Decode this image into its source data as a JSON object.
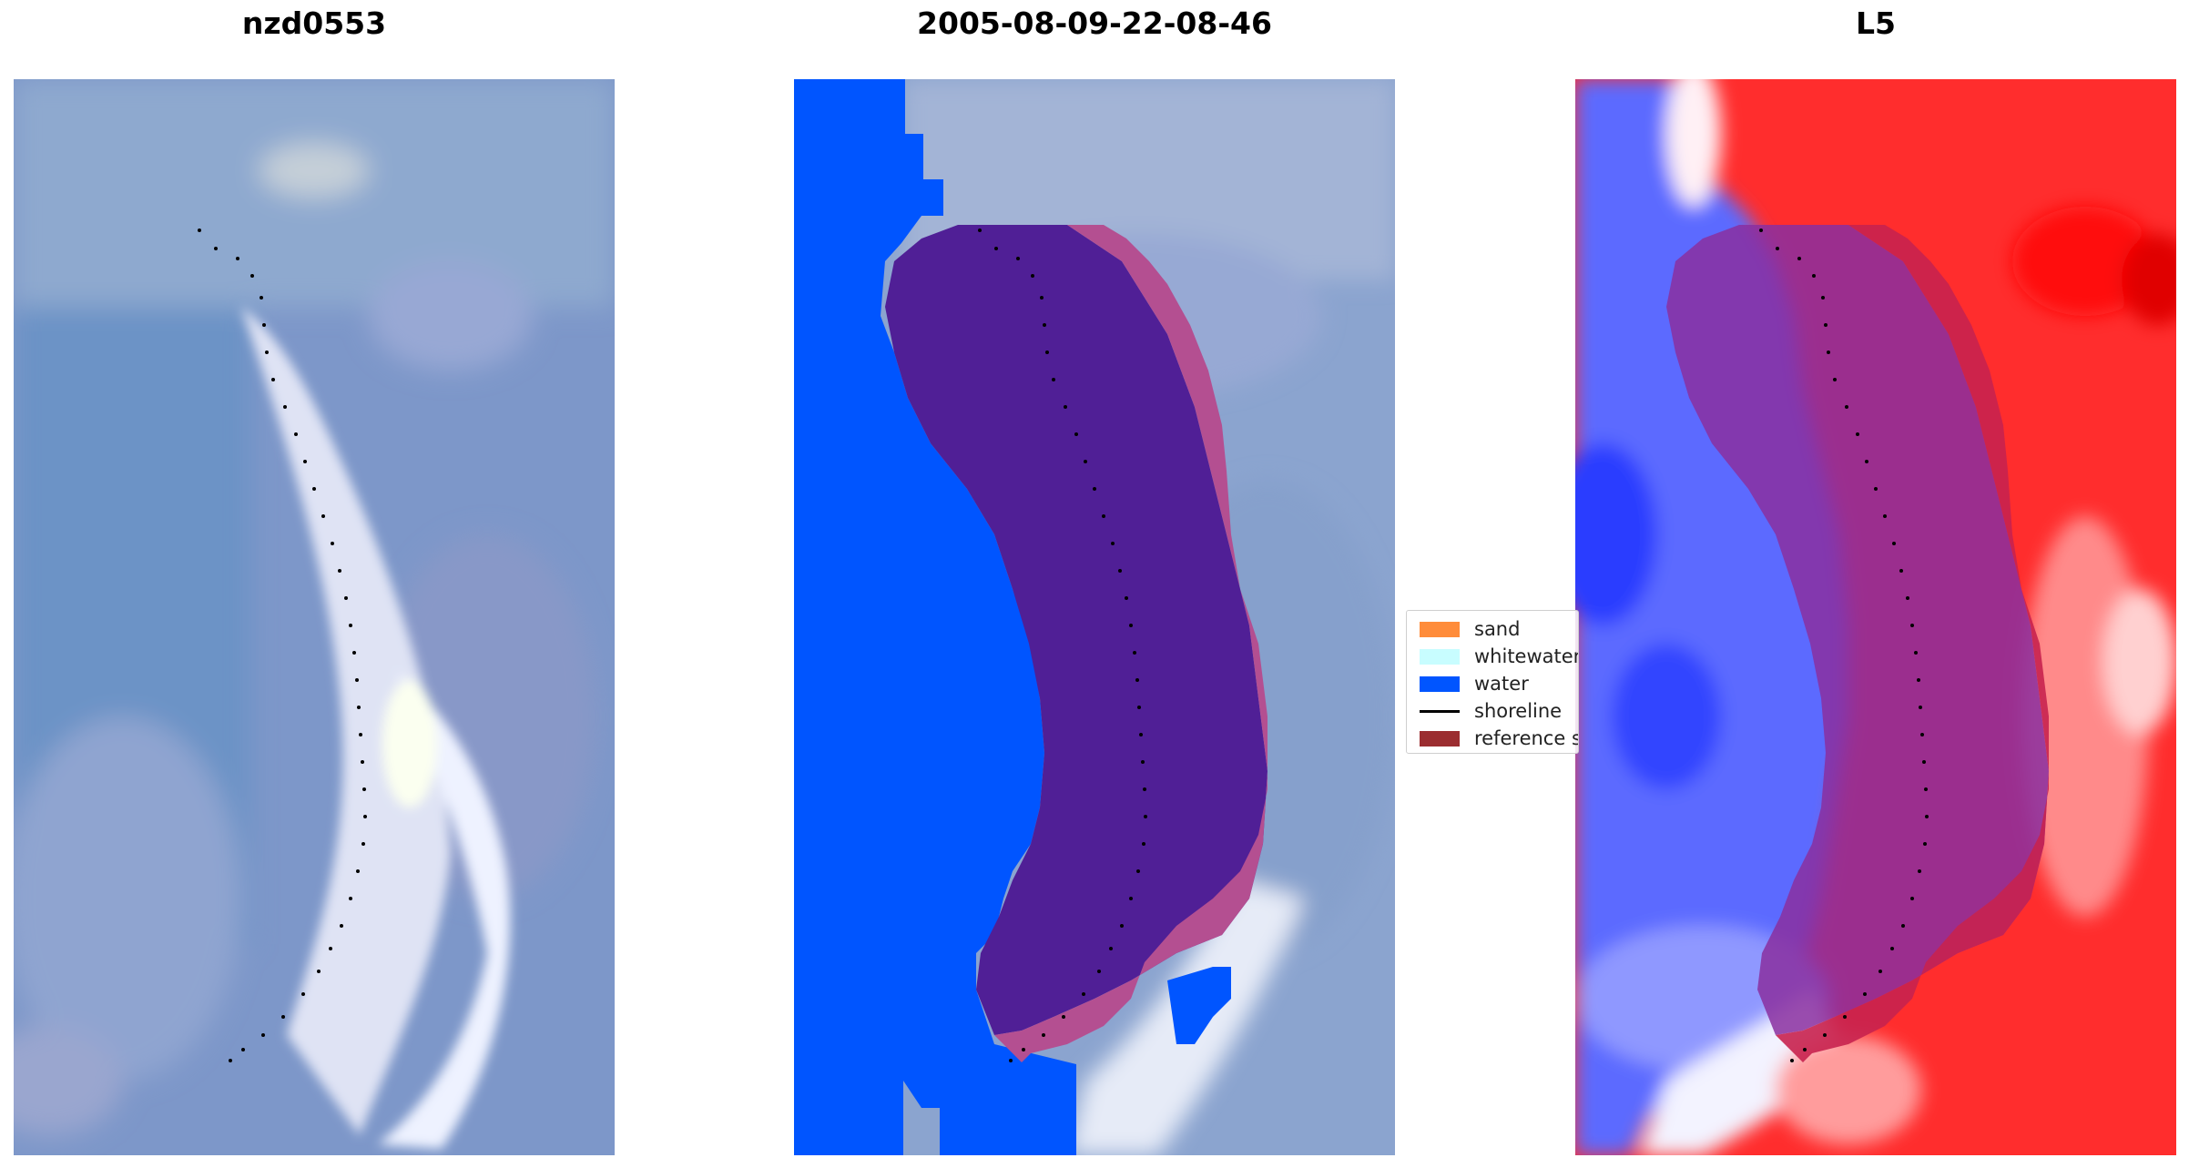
{
  "panels": [
    {
      "title": "nzd0553",
      "kind": "rgb"
    },
    {
      "title": "2005-08-09-22-08-46",
      "kind": "classified"
    },
    {
      "title": "L5",
      "kind": "mndwi"
    }
  ],
  "legend": {
    "items": [
      {
        "label": "sand",
        "color": "#ff8c3a",
        "type": "patch"
      },
      {
        "label": "whitewater",
        "color": "#c8fdff",
        "type": "patch"
      },
      {
        "label": "water",
        "color": "#0055ff",
        "type": "patch"
      },
      {
        "label": "shoreline",
        "color": "#000000",
        "type": "line"
      },
      {
        "label": "reference shoreline buffer",
        "color": "#9b2d30",
        "type": "patch"
      }
    ]
  },
  "colors": {
    "rgb_base": "#7f99cc",
    "water": "#0055ff",
    "buffer_dark": "#501f96",
    "buffer_light": "#c05a9a",
    "index_blue": "#5560ff",
    "index_red": "#ff2d2d"
  }
}
